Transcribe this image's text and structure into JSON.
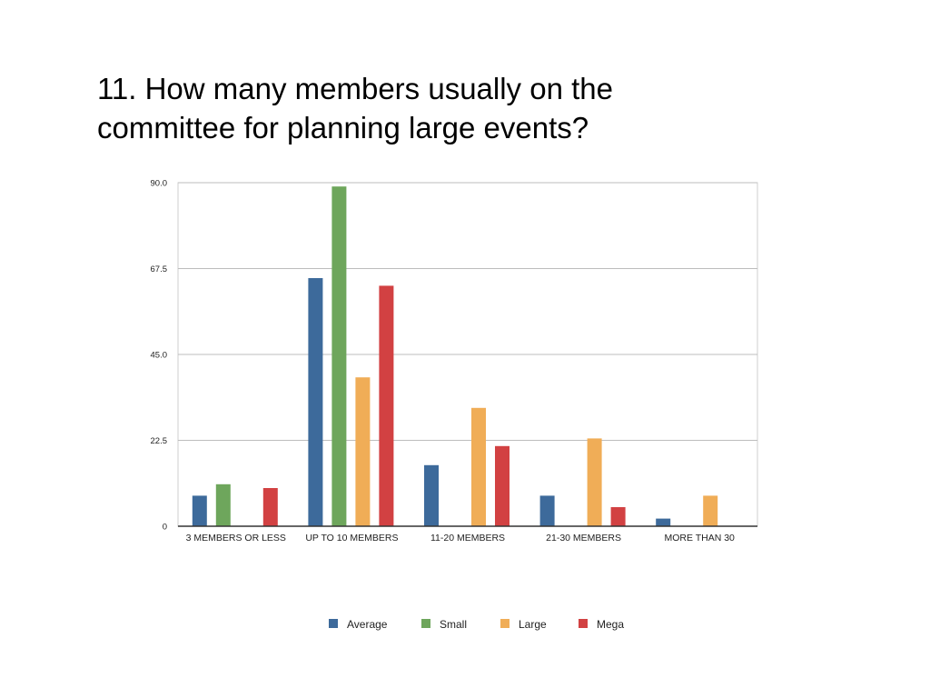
{
  "title": {
    "line1": "11.  How many members usually on the",
    "line2": "committee for planning large events?"
  },
  "chart_data": {
    "type": "bar",
    "title": "11.  How many members usually on the committee for planning large events?",
    "xlabel": "",
    "ylabel": "",
    "categories": [
      "3 MEMBERS OR LESS",
      "UP TO 10 MEMBERS",
      "11-20 MEMBERS",
      "21-30 MEMBERS",
      "MORE THAN 30"
    ],
    "series": [
      {
        "name": "Average",
        "color": "#3d6a9b",
        "values": [
          8,
          65,
          16,
          8,
          2
        ]
      },
      {
        "name": "Small",
        "color": "#6ea65c",
        "values": [
          11,
          89,
          0,
          0,
          0
        ]
      },
      {
        "name": "Large",
        "color": "#f0ad57",
        "values": [
          0,
          39,
          31,
          23,
          8
        ]
      },
      {
        "name": "Mega",
        "color": "#d24142",
        "values": [
          10,
          63,
          21,
          5,
          0
        ]
      }
    ],
    "ylim": [
      0,
      90
    ],
    "yticks": [
      "0",
      "22.5",
      "45.0",
      "67.5",
      "90.0"
    ],
    "ytick_values": [
      0,
      22.5,
      45,
      67.5,
      90
    ],
    "grid": true,
    "legend_position": "bottom"
  }
}
